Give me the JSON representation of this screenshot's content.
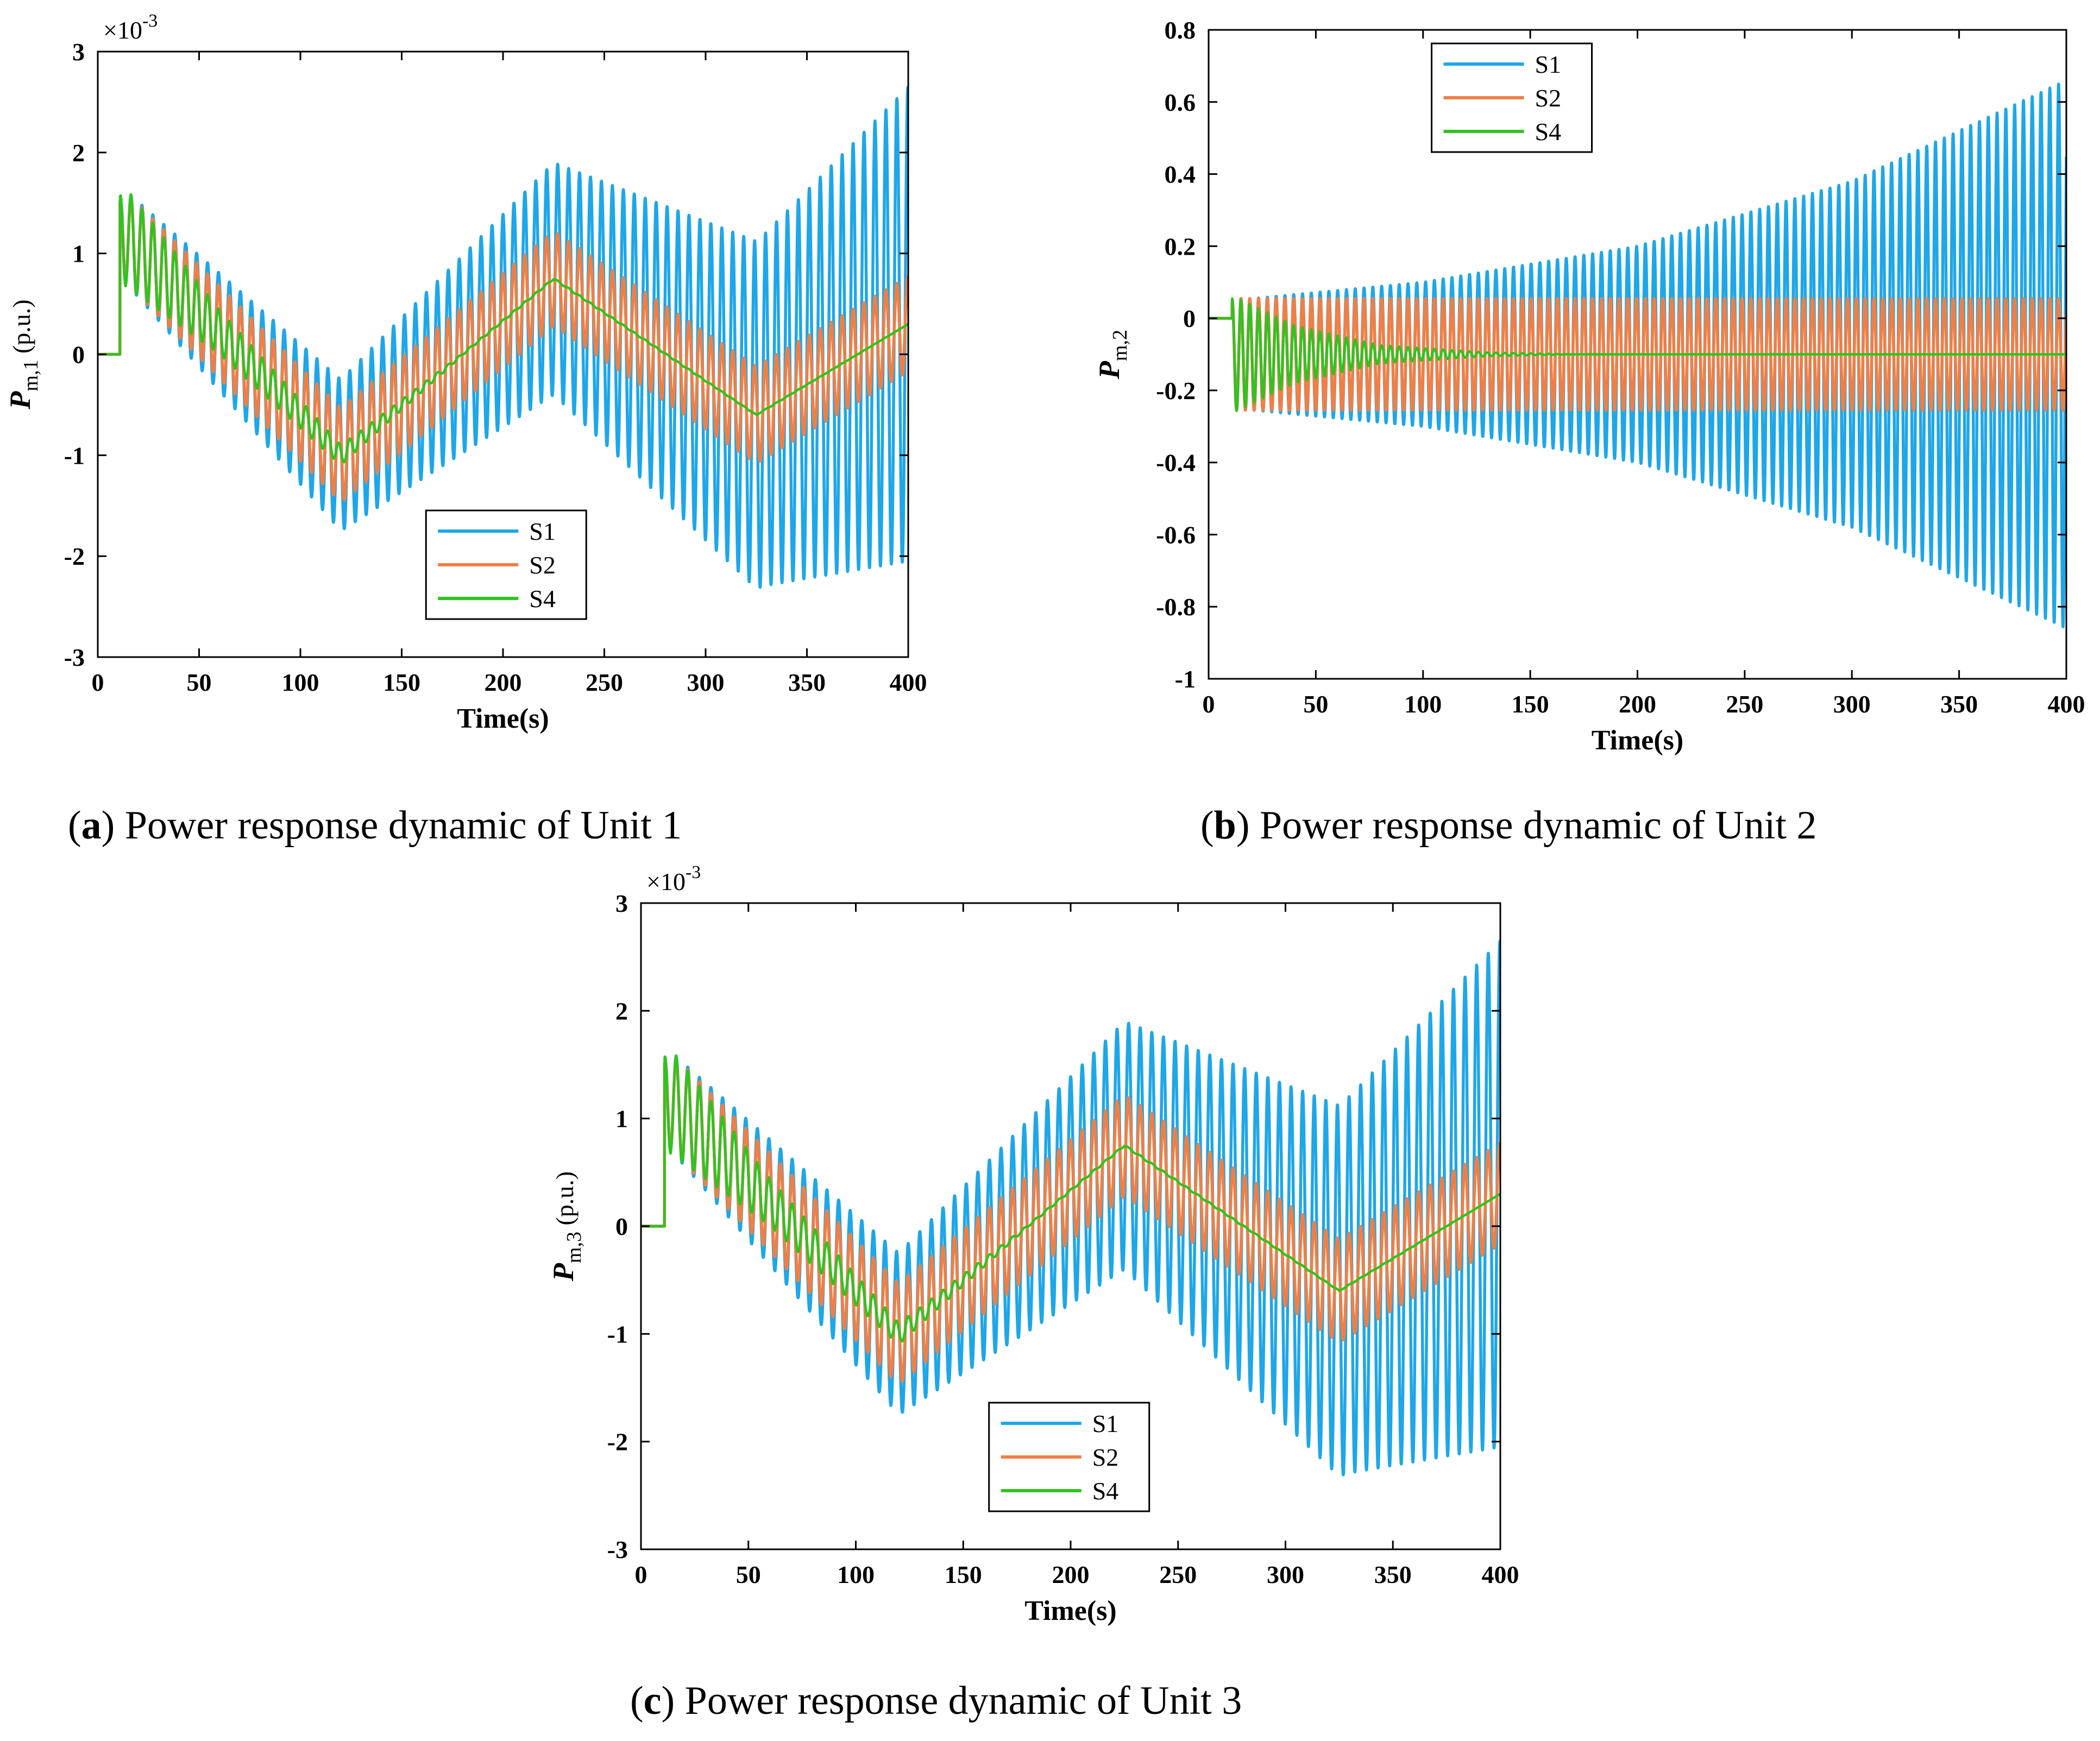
{
  "figure": {
    "captions": [
      {
        "letter": "a",
        "open": "(",
        "close": ") ",
        "text": "Power response dynamic of Unit 1"
      },
      {
        "letter": "b",
        "open": "(",
        "close": ") ",
        "text": "Power response dynamic of Unit 2"
      },
      {
        "letter": "c",
        "open": "(",
        "close": ") ",
        "text": "Power response dynamic of Unit 3"
      }
    ]
  },
  "chart_data": [
    {
      "type": "line",
      "panel": "a",
      "xlabel": "Time(s)",
      "ylabel_main": "P",
      "ylabel_sub": "m,1",
      "ylabel_unit": " (p.u.)",
      "y_multiplier_base": "×10",
      "y_multiplier_exp": "-3",
      "xlim": [
        0,
        400
      ],
      "ylim": [
        -3,
        3
      ],
      "xticks": [
        0,
        50,
        100,
        150,
        200,
        250,
        300,
        350,
        400
      ],
      "yticks": [
        -3,
        -2,
        -1,
        0,
        1,
        2,
        3
      ],
      "ytick_labels": [
        "-3",
        "-2",
        "-1",
        "0",
        "1",
        "2",
        "3"
      ],
      "legend_position": "lower-center",
      "series": [
        {
          "name": "S1",
          "color": "#1ea7e8",
          "model": {
            "step_time": 11,
            "oscillation_period": 5.4,
            "center": [
              [
                0,
                0
              ],
              [
                12,
                1.2
              ],
              [
                120,
                -1.0
              ],
              [
                225,
                0.75
              ],
              [
                325,
                -0.6
              ],
              [
                400,
                0.3
              ]
            ],
            "half_amplitude": [
              [
                0,
                0
              ],
              [
                12,
                0.45
              ],
              [
                120,
                0.75
              ],
              [
                225,
                1.15
              ],
              [
                330,
                1.75
              ],
              [
                400,
                2.35
              ]
            ]
          },
          "x": [
            0,
            10,
            20,
            50,
            100,
            125,
            150,
            200,
            225,
            250,
            300,
            335,
            350,
            400
          ],
          "upper": [
            0,
            0,
            1.78,
            1.6,
            -0.1,
            -0.25,
            0.3,
            1.75,
            1.9,
            1.7,
            1.15,
            1.1,
            1.3,
            2.6
          ],
          "lower": [
            0,
            0,
            0.8,
            0.3,
            -1.55,
            -1.72,
            -1.4,
            -0.25,
            -0.35,
            -0.7,
            -2.1,
            -2.33,
            -2.2,
            -2.1
          ]
        },
        {
          "name": "S2",
          "color": "#f07f45",
          "model": {
            "step_time": 11,
            "oscillation_period": 5.4,
            "center": [
              [
                0,
                0
              ],
              [
                12,
                1.2
              ],
              [
                120,
                -1.0
              ],
              [
                225,
                0.75
              ],
              [
                325,
                -0.6
              ],
              [
                400,
                0.3
              ]
            ],
            "half_amplitude": [
              [
                0,
                0
              ],
              [
                12,
                0.45
              ],
              [
                120,
                0.47
              ],
              [
                225,
                0.47
              ],
              [
                325,
                0.48
              ],
              [
                400,
                0.47
              ]
            ]
          },
          "x": [
            0,
            10,
            20,
            50,
            100,
            125,
            150,
            200,
            225,
            250,
            300,
            325,
            350,
            400
          ],
          "upper": [
            0,
            0,
            1.78,
            1.4,
            -0.2,
            -0.5,
            -0.2,
            1.0,
            1.22,
            1.0,
            0.0,
            -0.12,
            0.0,
            0.75
          ],
          "lower": [
            0,
            0,
            0.8,
            0.45,
            -1.2,
            -1.45,
            -1.2,
            0.15,
            0.28,
            0.1,
            -0.9,
            -1.03,
            -0.9,
            -0.2
          ]
        },
        {
          "name": "S4",
          "color": "#2ec41f",
          "model": {
            "step_time": 11,
            "oscillation_period": 5.4,
            "center": [
              [
                0,
                0
              ],
              [
                12,
                1.2
              ],
              [
                120,
                -1.0
              ],
              [
                225,
                0.75
              ],
              [
                325,
                -0.6
              ],
              [
                400,
                0.3
              ]
            ],
            "half_amplitude": [
              [
                0,
                0
              ],
              [
                12,
                0.5
              ],
              [
                60,
                0.22
              ],
              [
                130,
                0.08
              ],
              [
                180,
                0.01
              ],
              [
                400,
                0
              ]
            ]
          },
          "x": [
            0,
            10,
            13,
            20,
            50,
            100,
            125,
            150,
            200,
            225,
            250,
            300,
            325,
            350,
            400
          ],
          "y": [
            0,
            0,
            1.75,
            1.25,
            0.9,
            -0.6,
            -1.05,
            -0.7,
            0.55,
            0.72,
            0.55,
            -0.4,
            -0.55,
            -0.4,
            0.28
          ]
        }
      ]
    },
    {
      "type": "line",
      "panel": "b",
      "xlabel": "Time(s)",
      "ylabel_main": "P",
      "ylabel_sub": "m,2",
      "ylabel_unit": "",
      "y_multiplier_base": "",
      "y_multiplier_exp": "",
      "xlim": [
        0,
        400
      ],
      "ylim": [
        -1,
        0.8
      ],
      "xticks": [
        0,
        50,
        100,
        150,
        200,
        250,
        300,
        350,
        400
      ],
      "yticks": [
        -1,
        -0.8,
        -0.6,
        -0.4,
        -0.2,
        0,
        0.2,
        0.4,
        0.6,
        0.8
      ],
      "ytick_labels": [
        "-1",
        "-0.8",
        "-0.6",
        "-0.4",
        "-0.2",
        "0",
        "0.2",
        "0.4",
        "0.6",
        "0.8"
      ],
      "legend_position": "top-left",
      "series": [
        {
          "name": "S1",
          "color": "#1ea7e8",
          "model": {
            "step_time": 11,
            "oscillation_period": 4.1,
            "center": [
              [
                0,
                0
              ],
              [
                12,
                -0.1
              ],
              [
                400,
                -0.1
              ]
            ],
            "half_amplitude": [
              [
                0,
                0
              ],
              [
                12,
                0.15
              ],
              [
                100,
                0.2
              ],
              [
                200,
                0.3
              ],
              [
                300,
                0.48
              ],
              [
                400,
                0.76
              ]
            ]
          },
          "x": [
            0,
            10,
            20,
            100,
            200,
            300,
            400
          ],
          "upper": [
            0,
            0,
            0.06,
            0.1,
            0.2,
            0.38,
            0.65
          ],
          "lower": [
            0,
            0,
            -0.26,
            -0.3,
            -0.4,
            -0.57,
            -0.85
          ]
        },
        {
          "name": "S2",
          "color": "#f07f45",
          "model": {
            "step_time": 11,
            "oscillation_period": 4.1,
            "center": [
              [
                0,
                0
              ],
              [
                12,
                -0.1
              ],
              [
                400,
                -0.1
              ]
            ],
            "half_amplitude": [
              [
                0,
                0
              ],
              [
                12,
                0.155
              ],
              [
                400,
                0.155
              ]
            ]
          },
          "x": [
            0,
            10,
            20,
            100,
            200,
            300,
            400
          ],
          "upper": [
            0,
            0,
            0.055,
            0.055,
            0.055,
            0.055,
            0.055
          ],
          "lower": [
            0,
            0,
            -0.255,
            -0.255,
            -0.255,
            -0.255,
            -0.255
          ]
        },
        {
          "name": "S4",
          "color": "#2ec41f",
          "model": {
            "step_time": 11,
            "oscillation_period": 4.1,
            "center": [
              [
                0,
                0
              ],
              [
                12,
                -0.1
              ],
              [
                400,
                -0.1
              ]
            ],
            "half_amplitude": [
              [
                0,
                0
              ],
              [
                12,
                0.16
              ],
              [
                40,
                0.08
              ],
              [
                80,
                0.025
              ],
              [
                130,
                0.005
              ],
              [
                170,
                0
              ],
              [
                400,
                0
              ]
            ]
          },
          "x": [
            0,
            10,
            12,
            15,
            50,
            100,
            150,
            200,
            400
          ],
          "y": [
            0,
            0,
            0.05,
            -0.26,
            -0.07,
            -0.1,
            -0.1,
            -0.1,
            -0.1
          ]
        }
      ]
    },
    {
      "type": "line",
      "panel": "c",
      "xlabel": "Time(s)",
      "ylabel_main": "P",
      "ylabel_sub": "m,3",
      "ylabel_unit": " (p.u.)",
      "y_multiplier_base": "×10",
      "y_multiplier_exp": "-3",
      "xlim": [
        0,
        400
      ],
      "ylim": [
        -3,
        3
      ],
      "xticks": [
        0,
        50,
        100,
        150,
        200,
        250,
        300,
        350,
        400
      ],
      "yticks": [
        -3,
        -2,
        -1,
        0,
        1,
        2,
        3
      ],
      "ytick_labels": [
        "-3",
        "-2",
        "-1",
        "0",
        "1",
        "2",
        "3"
      ],
      "legend_position": "lower-center",
      "series": [
        {
          "name": "S1",
          "color": "#1ea7e8",
          "model": {
            "step_time": 11,
            "oscillation_period": 5.4,
            "center": [
              [
                0,
                0
              ],
              [
                12,
                1.2
              ],
              [
                120,
                -1.0
              ],
              [
                225,
                0.75
              ],
              [
                325,
                -0.6
              ],
              [
                400,
                0.3
              ]
            ],
            "half_amplitude": [
              [
                0,
                0
              ],
              [
                12,
                0.45
              ],
              [
                120,
                0.75
              ],
              [
                225,
                1.15
              ],
              [
                330,
                1.75
              ],
              [
                400,
                2.35
              ]
            ]
          },
          "x": [
            0,
            10,
            20,
            50,
            100,
            125,
            150,
            200,
            225,
            250,
            300,
            335,
            350,
            400
          ],
          "upper": [
            0,
            0,
            1.78,
            1.6,
            -0.1,
            -0.25,
            0.3,
            1.75,
            1.9,
            1.7,
            1.15,
            1.1,
            1.3,
            2.6
          ],
          "lower": [
            0,
            0,
            0.8,
            0.3,
            -1.55,
            -1.72,
            -1.4,
            -0.25,
            -0.35,
            -0.7,
            -2.1,
            -2.33,
            -2.2,
            -2.1
          ]
        },
        {
          "name": "S2",
          "color": "#f07f45",
          "model": {
            "step_time": 11,
            "oscillation_period": 5.4,
            "center": [
              [
                0,
                0
              ],
              [
                12,
                1.2
              ],
              [
                120,
                -1.0
              ],
              [
                225,
                0.75
              ],
              [
                325,
                -0.6
              ],
              [
                400,
                0.3
              ]
            ],
            "half_amplitude": [
              [
                0,
                0
              ],
              [
                12,
                0.45
              ],
              [
                120,
                0.47
              ],
              [
                225,
                0.47
              ],
              [
                325,
                0.48
              ],
              [
                400,
                0.47
              ]
            ]
          },
          "x": [
            0,
            10,
            20,
            50,
            100,
            125,
            150,
            200,
            225,
            250,
            300,
            325,
            350,
            400
          ],
          "upper": [
            0,
            0,
            1.78,
            1.4,
            -0.2,
            -0.5,
            -0.2,
            1.0,
            1.22,
            1.0,
            0.0,
            -0.12,
            0.0,
            0.75
          ],
          "lower": [
            0,
            0,
            0.8,
            0.45,
            -1.2,
            -1.45,
            -1.2,
            0.15,
            0.28,
            0.1,
            -0.9,
            -1.03,
            -0.9,
            -0.2
          ]
        },
        {
          "name": "S4",
          "color": "#2ec41f",
          "model": {
            "step_time": 11,
            "oscillation_period": 5.4,
            "center": [
              [
                0,
                0
              ],
              [
                12,
                1.2
              ],
              [
                120,
                -1.0
              ],
              [
                225,
                0.75
              ],
              [
                325,
                -0.6
              ],
              [
                400,
                0.3
              ]
            ],
            "half_amplitude": [
              [
                0,
                0
              ],
              [
                12,
                0.5
              ],
              [
                60,
                0.22
              ],
              [
                130,
                0.08
              ],
              [
                180,
                0.01
              ],
              [
                400,
                0
              ]
            ]
          },
          "x": [
            0,
            10,
            13,
            20,
            50,
            100,
            125,
            150,
            200,
            225,
            250,
            300,
            325,
            350,
            400
          ],
          "y": [
            0,
            0,
            1.75,
            1.25,
            0.9,
            -0.6,
            -1.05,
            -0.7,
            0.55,
            0.72,
            0.55,
            -0.4,
            -0.55,
            -0.4,
            0.28
          ]
        }
      ]
    }
  ]
}
